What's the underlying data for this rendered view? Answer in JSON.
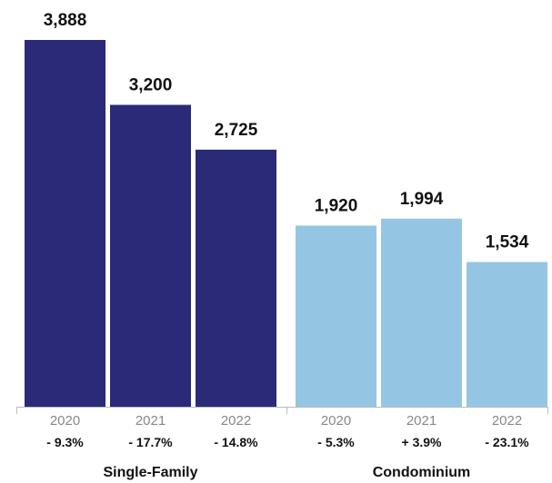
{
  "chart_data": {
    "type": "bar",
    "title": "",
    "xlabel": "",
    "ylabel": "",
    "ylim": [
      0,
      3888
    ],
    "grid": false,
    "legend": "none",
    "groups": [
      {
        "name": "Single-Family",
        "color": "#2a2a78",
        "categories": [
          "2020",
          "2021",
          "2022"
        ],
        "values": [
          3888,
          3200,
          2725
        ],
        "value_labels": [
          "3,888",
          "3,200",
          "2,725"
        ],
        "changes": [
          "- 9.3%",
          "- 17.7%",
          "- 14.8%"
        ]
      },
      {
        "name": "Condominium",
        "color": "#94c6e3",
        "categories": [
          "2020",
          "2021",
          "2022"
        ],
        "values": [
          1920,
          1994,
          1534
        ],
        "value_labels": [
          "1,920",
          "1,994",
          "1,534"
        ],
        "changes": [
          "- 5.3%",
          "+ 3.9%",
          "- 23.1%"
        ]
      }
    ]
  }
}
